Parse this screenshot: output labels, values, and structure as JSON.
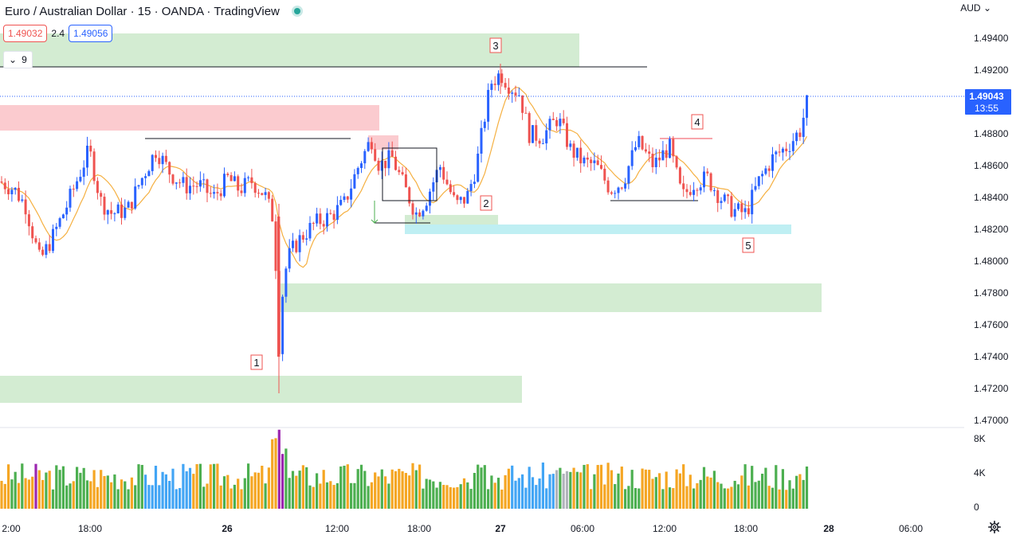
{
  "header": {
    "title": "Euro / Australian Dollar · 15 · OANDA · TradingView",
    "bid": "1.49032",
    "spread": "2.4",
    "ask": "1.49056",
    "indicator_toggle": "9"
  },
  "price_axis": {
    "currency": "AUD",
    "ticks": [
      "1.49400",
      "1.49200",
      "1.48800",
      "1.48600",
      "1.48400",
      "1.48200",
      "1.48000",
      "1.47800",
      "1.47600",
      "1.47400",
      "1.47200",
      "1.47000"
    ],
    "last_price": "1.49043",
    "countdown": "13:55"
  },
  "volume_axis": {
    "ticks": [
      "8K",
      "4K",
      "0"
    ]
  },
  "time_axis": {
    "ticks": [
      "2:00",
      "18:00",
      "26",
      "12:00",
      "18:00",
      "27",
      "06:00",
      "12:00",
      "18:00",
      "28",
      "06:00"
    ]
  },
  "markers": [
    "1",
    "2",
    "3",
    "4",
    "5"
  ],
  "colors": {
    "up": "#2962ff",
    "down": "#ef5350",
    "ma": "#f5b041",
    "zone_green": "#d3ecd2",
    "zone_red": "#fbcbcf",
    "zone_cyan": "#bfeff3",
    "vol_green": "#4caf50",
    "vol_orange": "#f5a623",
    "vol_blue": "#42a5f5",
    "vol_purple": "#9c27b0",
    "vol_red": "#ef5350",
    "vol_grey": "#b0b3bb"
  },
  "chart_data": {
    "type": "candlestick",
    "symbol": "Euro / Australian Dollar",
    "interval": "15",
    "source": "OANDA",
    "ylim": [
      1.4695,
      1.4958
    ],
    "zones": [
      {
        "color": "green",
        "y_top": 1.4943,
        "y_bottom": 1.4922
      },
      {
        "color": "red",
        "y_top": 1.4898,
        "y_bottom": 1.4882
      },
      {
        "color": "red",
        "y_top": 1.4879,
        "y_bottom": 1.487
      },
      {
        "color": "green",
        "y_top": 1.4786,
        "y_bottom": 1.4768
      },
      {
        "color": "green",
        "y_top": 1.4728,
        "y_bottom": 1.4711
      },
      {
        "color": "green",
        "y_top": 1.4829,
        "y_bottom": 1.4817
      },
      {
        "color": "cyan",
        "y_top": 1.4823,
        "y_bottom": 1.4817
      }
    ],
    "hlines": [
      {
        "y": 1.4922,
        "label": "3"
      },
      {
        "y": 1.4877
      },
      {
        "y": 1.4838
      },
      {
        "y": 1.4824
      }
    ],
    "pivots": [
      {
        "label": "1",
        "price": 1.4723
      },
      {
        "label": "2",
        "price": 1.4829
      },
      {
        "label": "3",
        "price": 1.4923
      },
      {
        "label": "4",
        "price": 1.4877
      },
      {
        "label": "5",
        "price": 1.4823
      }
    ],
    "path": [
      [
        0,
        1.485
      ],
      [
        18,
        1.4845
      ],
      [
        32,
        1.4835
      ],
      [
        50,
        1.48
      ],
      [
        66,
        1.4815
      ],
      [
        84,
        1.4835
      ],
      [
        100,
        1.4855
      ],
      [
        112,
        1.487
      ],
      [
        126,
        1.4838
      ],
      [
        140,
        1.483
      ],
      [
        160,
        1.4832
      ],
      [
        176,
        1.485
      ],
      [
        196,
        1.487
      ],
      [
        214,
        1.4855
      ],
      [
        232,
        1.4847
      ],
      [
        250,
        1.4848
      ],
      [
        268,
        1.484
      ],
      [
        286,
        1.4852
      ],
      [
        300,
        1.4845
      ],
      [
        316,
        1.485
      ],
      [
        332,
        1.4842
      ],
      [
        344,
        1.4825
      ],
      [
        350,
        1.4745
      ],
      [
        356,
        1.479
      ],
      [
        364,
        1.4805
      ],
      [
        378,
        1.4815
      ],
      [
        396,
        1.4824
      ],
      [
        414,
        1.4828
      ],
      [
        432,
        1.4836
      ],
      [
        450,
        1.486
      ],
      [
        466,
        1.4877
      ],
      [
        476,
        1.486
      ],
      [
        492,
        1.4865
      ],
      [
        506,
        1.4848
      ],
      [
        522,
        1.483
      ],
      [
        534,
        1.4838
      ],
      [
        552,
        1.486
      ],
      [
        572,
        1.4835
      ],
      [
        586,
        1.484
      ],
      [
        598,
        1.486
      ],
      [
        608,
        1.489
      ],
      [
        616,
        1.4912
      ],
      [
        628,
        1.4918
      ],
      [
        640,
        1.491
      ],
      [
        652,
        1.4905
      ],
      [
        664,
        1.488
      ],
      [
        680,
        1.4878
      ],
      [
        700,
        1.489
      ],
      [
        716,
        1.487
      ],
      [
        732,
        1.4862
      ],
      [
        748,
        1.486
      ],
      [
        766,
        1.4845
      ],
      [
        782,
        1.485
      ],
      [
        800,
        1.4875
      ],
      [
        820,
        1.486
      ],
      [
        840,
        1.4872
      ],
      [
        856,
        1.484
      ],
      [
        872,
        1.485
      ],
      [
        888,
        1.4852
      ],
      [
        904,
        1.484
      ],
      [
        920,
        1.4832
      ],
      [
        936,
        1.483
      ],
      [
        952,
        1.485
      ],
      [
        970,
        1.4865
      ],
      [
        988,
        1.4872
      ],
      [
        1004,
        1.4882
      ],
      [
        1014,
        1.4902
      ]
    ],
    "volume_max_k": 9
  }
}
